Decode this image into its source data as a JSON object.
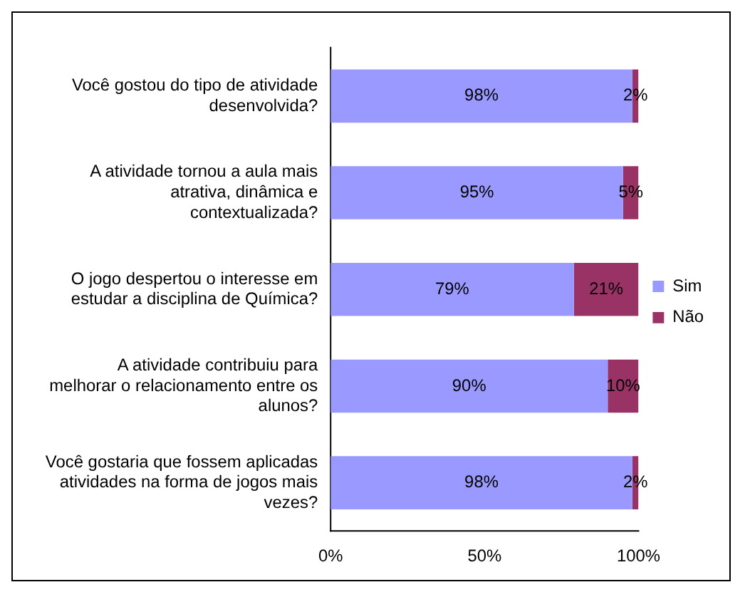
{
  "chart_data": {
    "type": "bar",
    "orientation": "horizontal",
    "stacked": true,
    "categories": [
      "Você gostou do tipo de atividade desenvolvida?",
      "A atividade tornou a aula mais atrativa, dinâmica e contextualizada?",
      "O jogo despertou o interesse em estudar a disciplina de Química?",
      "A atividade contribuiu para melhorar o relacionamento entre os alunos?",
      "Você gostaria que fossem aplicadas atividades na forma de jogos mais vezes?"
    ],
    "series": [
      {
        "name": "Sim",
        "color": "#9999ff",
        "values": [
          98,
          95,
          79,
          90,
          98
        ],
        "value_labels": [
          "98%",
          "95%",
          "79%",
          "90%",
          "98%"
        ]
      },
      {
        "name": "Não",
        "color": "#993366",
        "values": [
          2,
          5,
          21,
          10,
          2
        ],
        "value_labels": [
          "2%",
          "5%",
          "21%",
          "10%",
          "2%"
        ]
      }
    ],
    "xlim": [
      0,
      100
    ],
    "xticks": [
      {
        "value": 0,
        "label": "0%"
      },
      {
        "value": 50,
        "label": "50%"
      },
      {
        "value": 100,
        "label": "100%"
      }
    ],
    "grid": false,
    "legend": "right"
  }
}
